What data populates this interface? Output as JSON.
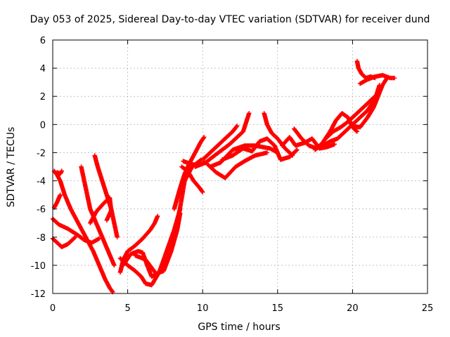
{
  "chart_data": {
    "type": "scatter",
    "title": "Day 053 of 2025, Sidereal Day-to-day VTEC variation (SDTVAR) for receiver dund",
    "xlabel": "GPS time / hours",
    "ylabel": "SDTVAR / TECUs",
    "xlim": [
      0,
      25
    ],
    "ylim": [
      -12,
      6
    ],
    "xticks": [
      0,
      5,
      10,
      15,
      20,
      25
    ],
    "yticks": [
      -12,
      -10,
      -8,
      -6,
      -4,
      -2,
      0,
      2,
      4,
      6
    ],
    "grid": true,
    "marker": "plus",
    "color": "#ff0000",
    "series": [
      {
        "points": [
          [
            0.1,
            -3.3
          ],
          [
            0.3,
            -3.6
          ],
          [
            0.5,
            -4.0
          ],
          [
            0.8,
            -5.0
          ],
          [
            1.2,
            -6.0
          ],
          [
            1.7,
            -7.0
          ],
          [
            2.2,
            -8.0
          ],
          [
            2.7,
            -9.0
          ],
          [
            3.1,
            -10.0
          ],
          [
            3.5,
            -11.0
          ],
          [
            3.8,
            -11.6
          ],
          [
            4.0,
            -11.9
          ]
        ]
      },
      {
        "points": [
          [
            0.0,
            -6.7
          ],
          [
            0.4,
            -7.1
          ],
          [
            1.0,
            -7.4
          ],
          [
            1.6,
            -7.8
          ],
          [
            2.1,
            -8.2
          ],
          [
            2.6,
            -8.4
          ],
          [
            3.1,
            -8.1
          ]
        ]
      },
      {
        "points": [
          [
            0.0,
            -8.1
          ],
          [
            0.3,
            -8.4
          ],
          [
            0.6,
            -8.7
          ],
          [
            1.0,
            -8.5
          ],
          [
            1.5,
            -8.0
          ]
        ]
      },
      {
        "points": [
          [
            0.1,
            -5.9
          ],
          [
            0.3,
            -5.5
          ],
          [
            0.5,
            -5.0
          ]
        ]
      },
      {
        "points": [
          [
            0.3,
            -3.4
          ],
          [
            0.5,
            -3.5
          ],
          [
            0.6,
            -3.3
          ]
        ]
      },
      {
        "points": [
          [
            1.9,
            -3.0
          ],
          [
            2.1,
            -4.0
          ],
          [
            2.3,
            -5.0
          ],
          [
            2.5,
            -6.0
          ],
          [
            2.9,
            -7.0
          ],
          [
            3.3,
            -8.0
          ],
          [
            3.7,
            -9.0
          ],
          [
            4.1,
            -10.0
          ]
        ]
      },
      {
        "points": [
          [
            2.8,
            -2.2
          ],
          [
            3.0,
            -3.0
          ],
          [
            3.3,
            -4.0
          ],
          [
            3.6,
            -5.0
          ],
          [
            3.9,
            -6.0
          ],
          [
            4.1,
            -7.0
          ],
          [
            4.3,
            -8.0
          ]
        ]
      },
      {
        "points": [
          [
            2.5,
            -7.0
          ],
          [
            2.9,
            -6.2
          ],
          [
            3.4,
            -5.6
          ],
          [
            3.8,
            -5.2
          ],
          [
            3.9,
            -6.1
          ],
          [
            3.6,
            -6.8
          ]
        ]
      },
      {
        "points": [
          [
            4.5,
            -10.5
          ],
          [
            4.7,
            -9.6
          ],
          [
            5.0,
            -9.0
          ],
          [
            5.5,
            -8.6
          ],
          [
            6.0,
            -8.1
          ],
          [
            6.5,
            -7.5
          ],
          [
            6.8,
            -7.0
          ],
          [
            7.0,
            -6.5
          ]
        ]
      },
      {
        "points": [
          [
            4.7,
            -10.0
          ],
          [
            5.2,
            -9.2
          ],
          [
            5.7,
            -9.0
          ],
          [
            6.0,
            -9.1
          ],
          [
            6.3,
            -10.0
          ],
          [
            6.6,
            -10.8
          ],
          [
            7.0,
            -10.6
          ],
          [
            7.5,
            -10.0
          ],
          [
            7.9,
            -9.0
          ],
          [
            8.3,
            -7.5
          ],
          [
            8.5,
            -6.3
          ]
        ]
      },
      {
        "points": [
          [
            4.5,
            -9.5
          ],
          [
            5.0,
            -10.0
          ],
          [
            5.5,
            -10.4
          ],
          [
            5.9,
            -10.8
          ],
          [
            6.2,
            -11.3
          ],
          [
            6.6,
            -11.4
          ],
          [
            7.1,
            -10.5
          ],
          [
            7.6,
            -9.0
          ],
          [
            8.1,
            -7.5
          ],
          [
            8.5,
            -6.0
          ]
        ]
      },
      {
        "points": [
          [
            5.5,
            -9.3
          ],
          [
            6.2,
            -9.6
          ],
          [
            6.9,
            -10.6
          ],
          [
            7.4,
            -10.4
          ],
          [
            7.9,
            -9.0
          ],
          [
            8.4,
            -6.5
          ],
          [
            8.8,
            -4.0
          ],
          [
            9.3,
            -3.0
          ],
          [
            9.9,
            -2.5
          ]
        ]
      },
      {
        "points": [
          [
            8.1,
            -6.0
          ],
          [
            8.5,
            -4.5
          ],
          [
            8.8,
            -3.5
          ],
          [
            9.1,
            -2.8
          ],
          [
            9.5,
            -2.0
          ],
          [
            9.9,
            -1.2
          ],
          [
            10.1,
            -0.9
          ]
        ]
      },
      {
        "points": [
          [
            8.6,
            -3.0
          ],
          [
            9.0,
            -3.3
          ],
          [
            9.4,
            -4.0
          ],
          [
            9.8,
            -4.5
          ],
          [
            10.0,
            -4.8
          ]
        ]
      },
      {
        "points": [
          [
            8.7,
            -2.6
          ],
          [
            9.2,
            -2.8
          ],
          [
            9.7,
            -2.9
          ],
          [
            10.2,
            -2.7
          ],
          [
            10.9,
            -3.4
          ],
          [
            11.5,
            -3.8
          ],
          [
            12.2,
            -3.0
          ],
          [
            12.8,
            -2.6
          ],
          [
            13.5,
            -2.2
          ],
          [
            14.3,
            -2.0
          ]
        ]
      },
      {
        "points": [
          [
            9.5,
            -3.0
          ],
          [
            10.2,
            -2.7
          ],
          [
            10.8,
            -2.2
          ],
          [
            11.3,
            -1.8
          ],
          [
            11.8,
            -1.4
          ],
          [
            12.2,
            -1.0
          ],
          [
            12.7,
            -0.5
          ],
          [
            13.1,
            0.8
          ]
        ]
      },
      {
        "points": [
          [
            10.0,
            -2.5
          ],
          [
            10.5,
            -2.0
          ],
          [
            11.0,
            -1.5
          ],
          [
            11.5,
            -1.0
          ],
          [
            12.0,
            -0.5
          ],
          [
            12.3,
            -0.1
          ]
        ]
      },
      {
        "points": [
          [
            10.5,
            -3.0
          ],
          [
            11.2,
            -2.7
          ],
          [
            12.0,
            -1.8
          ],
          [
            12.8,
            -1.5
          ],
          [
            13.5,
            -1.5
          ],
          [
            14.0,
            -1.6
          ],
          [
            14.5,
            -1.7
          ],
          [
            15.0,
            -2.0
          ]
        ]
      },
      {
        "points": [
          [
            11.3,
            -2.5
          ],
          [
            12.0,
            -2.2
          ],
          [
            12.7,
            -1.7
          ],
          [
            13.3,
            -1.9
          ],
          [
            13.8,
            -1.2
          ],
          [
            14.3,
            -1.0
          ],
          [
            14.8,
            -1.5
          ],
          [
            15.2,
            -2.5
          ],
          [
            15.8,
            -2.3
          ],
          [
            16.3,
            -1.8
          ]
        ]
      },
      {
        "points": [
          [
            14.1,
            0.8
          ],
          [
            14.3,
            0.0
          ],
          [
            14.6,
            -0.6
          ],
          [
            15.0,
            -1.0
          ],
          [
            15.5,
            -1.7
          ],
          [
            16.0,
            -2.2
          ]
        ]
      },
      {
        "points": [
          [
            15.3,
            -1.5
          ],
          [
            15.8,
            -0.9
          ],
          [
            16.2,
            -1.5
          ],
          [
            16.8,
            -1.3
          ],
          [
            17.3,
            -1.0
          ],
          [
            17.8,
            -1.7
          ],
          [
            18.3,
            -1.6
          ],
          [
            18.8,
            -1.4
          ]
        ]
      },
      {
        "points": [
          [
            16.1,
            -0.3
          ],
          [
            16.6,
            -1.0
          ],
          [
            17.1,
            -1.5
          ],
          [
            17.6,
            -1.7
          ],
          [
            18.0,
            -1.5
          ],
          [
            18.5,
            -1.2
          ],
          [
            19.0,
            -1.0
          ],
          [
            19.5,
            -0.5
          ],
          [
            20.0,
            0.0
          ],
          [
            20.5,
            0.5
          ],
          [
            21.0,
            1.0
          ],
          [
            21.5,
            1.8
          ],
          [
            21.8,
            2.8
          ]
        ]
      },
      {
        "points": [
          [
            17.5,
            -1.8
          ],
          [
            18.0,
            -1.3
          ],
          [
            18.5,
            -0.5
          ],
          [
            18.9,
            0.3
          ],
          [
            19.3,
            0.8
          ],
          [
            19.7,
            0.5
          ],
          [
            20.0,
            -0.2
          ],
          [
            20.3,
            -0.5
          ]
        ]
      },
      {
        "points": [
          [
            18.2,
            -1.0
          ],
          [
            18.7,
            -0.5
          ],
          [
            19.2,
            -0.2
          ],
          [
            19.7,
            0.2
          ],
          [
            20.2,
            0.7
          ],
          [
            20.7,
            1.2
          ],
          [
            21.2,
            1.7
          ],
          [
            21.7,
            2.2
          ]
        ]
      },
      {
        "points": [
          [
            20.3,
            4.5
          ],
          [
            20.4,
            4.0
          ],
          [
            20.6,
            3.6
          ],
          [
            20.9,
            3.3
          ],
          [
            21.2,
            3.4
          ],
          [
            21.5,
            3.3
          ]
        ]
      },
      {
        "points": [
          [
            20.0,
            -0.1
          ],
          [
            20.5,
            -0.2
          ],
          [
            21.0,
            0.5
          ],
          [
            21.4,
            1.2
          ],
          [
            21.7,
            2.0
          ],
          [
            22.0,
            2.8
          ],
          [
            22.3,
            3.3
          ]
        ]
      },
      {
        "points": [
          [
            20.5,
            2.9
          ],
          [
            21.0,
            3.2
          ],
          [
            21.5,
            3.4
          ],
          [
            22.0,
            3.5
          ],
          [
            22.5,
            3.3
          ],
          [
            22.8,
            3.3
          ]
        ]
      }
    ]
  }
}
